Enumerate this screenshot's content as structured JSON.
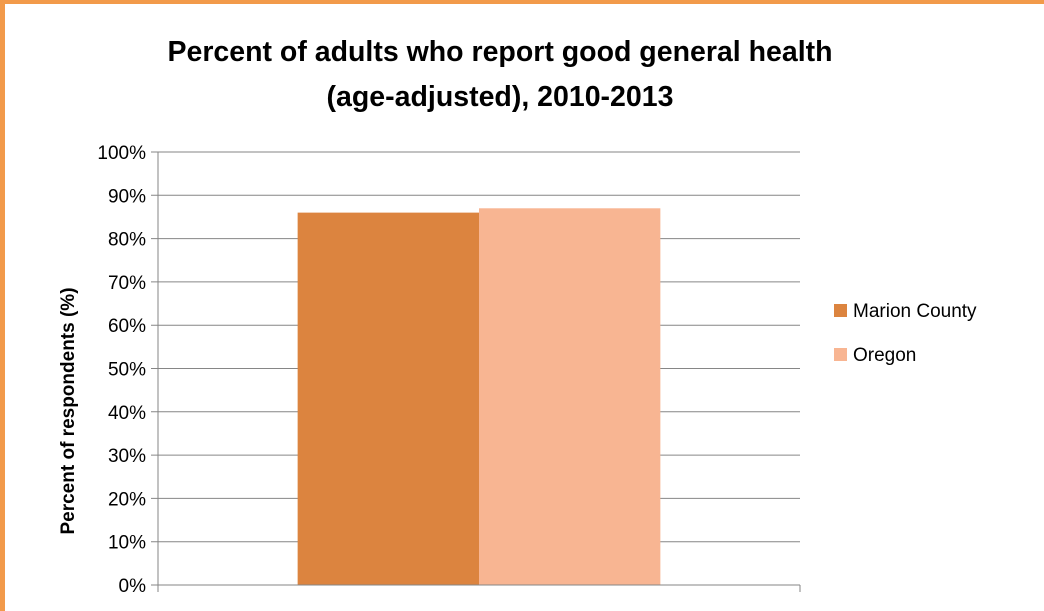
{
  "chart_data": {
    "type": "bar",
    "title_lines": [
      "Percent of adults who report good general health",
      "(age-adjusted), 2010-2013"
    ],
    "xlabel": "",
    "ylabel": "Percent of respondents (%)",
    "ylim": [
      0,
      100
    ],
    "yticks": [
      "0%",
      "10%",
      "20%",
      "30%",
      "40%",
      "50%",
      "60%",
      "70%",
      "80%",
      "90%",
      "100%"
    ],
    "grid": true,
    "legend_position": "right",
    "categories": [
      ""
    ],
    "series": [
      {
        "name": "Marion County",
        "values": [
          86
        ],
        "color": "#dc843f"
      },
      {
        "name": "Oregon",
        "values": [
          87
        ],
        "color": "#f8b592"
      }
    ]
  },
  "colors": {
    "frame_border": "#f29a4a",
    "gridline": "#868686"
  }
}
